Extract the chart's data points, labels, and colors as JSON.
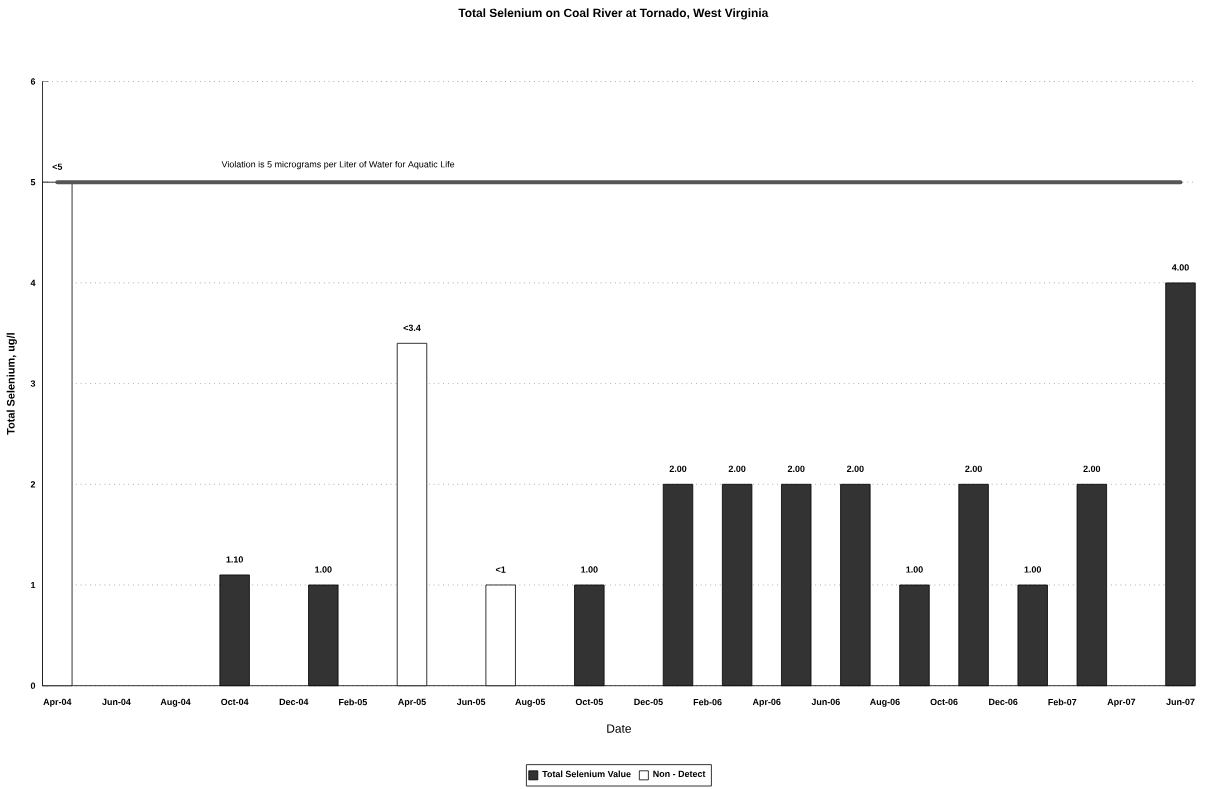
{
  "chart_data": {
    "type": "bar",
    "title": "Total Selenium on Coal River at Tornado, West Virginia",
    "xlabel": "Date",
    "ylabel": "Total Selenium, ug/l",
    "categories": [
      "Apr-04",
      null,
      "Jun-04",
      null,
      "Aug-04",
      null,
      "Oct-04",
      null,
      "Dec-04",
      null,
      "Feb-05",
      null,
      "Apr-05",
      null,
      "Jun-05",
      null,
      "Aug-05",
      null,
      "Oct-05",
      null,
      "Dec-05",
      null,
      "Feb-06",
      null,
      "Apr-06",
      null,
      "Jun-06",
      null,
      "Aug-06",
      null,
      "Oct-06",
      null,
      "Dec-06",
      null,
      "Feb-07",
      null,
      "Apr-07",
      null,
      "Jun-07"
    ],
    "series": [
      {
        "name": "Total Selenium Value",
        "color": "#333333",
        "values": [
          null,
          null,
          null,
          null,
          null,
          null,
          1.1,
          null,
          null,
          1.0,
          null,
          null,
          null,
          null,
          null,
          null,
          null,
          null,
          1.0,
          null,
          null,
          2.0,
          null,
          2.0,
          null,
          2.0,
          null,
          2.0,
          null,
          1.0,
          null,
          2.0,
          null,
          1.0,
          null,
          2.0,
          null,
          null,
          4.0
        ],
        "value_labels": [
          null,
          null,
          null,
          null,
          null,
          null,
          "1.10",
          null,
          null,
          "1.00",
          null,
          null,
          null,
          null,
          null,
          null,
          null,
          null,
          "1.00",
          null,
          null,
          "2.00",
          null,
          "2.00",
          null,
          "2.00",
          null,
          "2.00",
          null,
          "1.00",
          null,
          "2.00",
          null,
          "1.00",
          null,
          "2.00",
          null,
          null,
          "4.00"
        ]
      },
      {
        "name": "Non - Detect",
        "color": "#ffffff",
        "values": [
          5,
          null,
          null,
          null,
          null,
          null,
          null,
          null,
          null,
          null,
          null,
          null,
          3.4,
          null,
          null,
          1,
          null,
          null,
          null,
          null,
          null,
          null,
          null,
          null,
          null,
          null,
          null,
          null,
          null,
          null,
          null,
          null,
          null,
          null,
          null,
          null,
          null,
          null,
          null
        ],
        "value_labels": [
          "<5",
          null,
          null,
          null,
          null,
          null,
          null,
          null,
          null,
          null,
          null,
          null,
          "<3.4",
          null,
          null,
          "<1",
          null,
          null,
          null,
          null,
          null,
          null,
          null,
          null,
          null,
          null,
          null,
          null,
          null,
          null,
          null,
          null,
          null,
          null,
          null,
          null,
          null,
          null,
          null
        ]
      }
    ],
    "ylim": [
      0,
      6
    ],
    "yticks": [
      0,
      1,
      2,
      3,
      4,
      5,
      6
    ],
    "grid": "y",
    "legend": "bottom",
    "ref_lines": [
      {
        "axis": "y",
        "value": 5,
        "label": "Violation is 5 micrograms per Liter of Water for Aquatic Life",
        "color": "#555555"
      }
    ]
  }
}
